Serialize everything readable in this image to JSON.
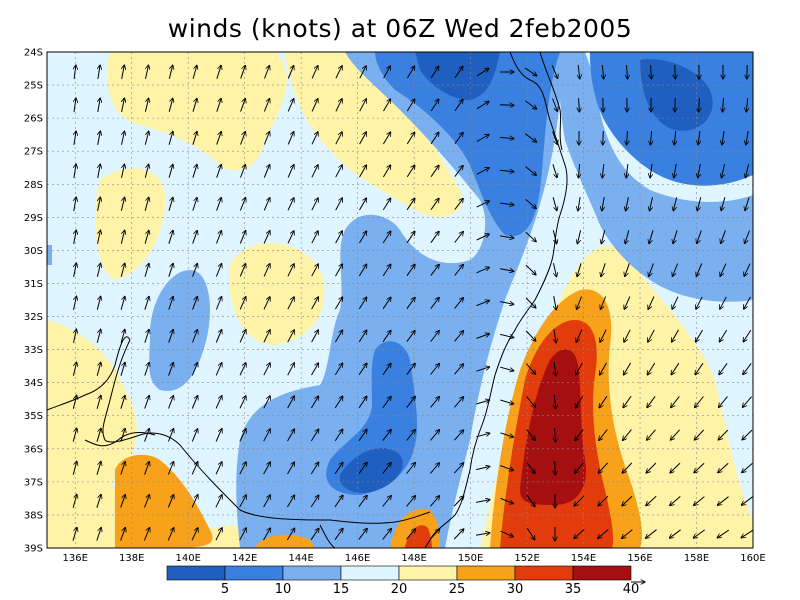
{
  "title": "winds (knots) at 06Z Wed 2feb2005",
  "map": {
    "lon_labels": [
      "136E",
      "138E",
      "140E",
      "142E",
      "144E",
      "146E",
      "148E",
      "150E",
      "152E",
      "154E",
      "156E",
      "158E",
      "160E"
    ],
    "lat_labels": [
      "24S",
      "25S",
      "26S",
      "27S",
      "28S",
      "29S",
      "30S",
      "31S",
      "32S",
      "33S",
      "34S",
      "35S",
      "36S",
      "37S",
      "38S",
      "39S"
    ],
    "lon_range": [
      135,
      160
    ],
    "lat_range": [
      -24,
      -39
    ],
    "gridlines": "dashed"
  },
  "colorbar": {
    "labels": [
      "5",
      "10",
      "15",
      "20",
      "25",
      "30",
      "35",
      "40"
    ],
    "colors": [
      "#1f5fc0",
      "#3a80e0",
      "#7ab0f0",
      "#dff5ff",
      "#fff3a8",
      "#f7a21a",
      "#e23c0c",
      "#a50f0f"
    ]
  }
}
